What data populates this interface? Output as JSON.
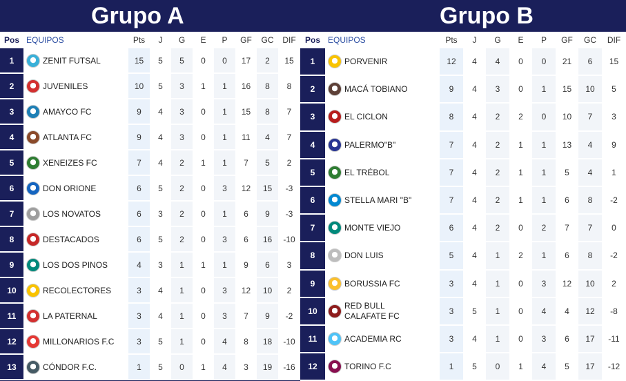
{
  "group_a": {
    "title": "Grupo A",
    "headers": {
      "pos": "Pos",
      "team": "EQUIPOS",
      "pts": "Pts",
      "j": "J",
      "g": "G",
      "e": "E",
      "p": "P",
      "gf": "GF",
      "gc": "GC",
      "dif": "DIF"
    },
    "rows": [
      {
        "pos": "1",
        "team": "ZENIT FUTSAL",
        "pts": "15",
        "j": "5",
        "g": "5",
        "e": "0",
        "p": "0",
        "gf": "17",
        "gc": "2",
        "dif": "15",
        "color": "#3ab0d8"
      },
      {
        "pos": "2",
        "team": "JUVENILES",
        "pts": "10",
        "j": "5",
        "g": "3",
        "e": "1",
        "p": "1",
        "gf": "16",
        "gc": "8",
        "dif": "8",
        "color": "#d32f2f"
      },
      {
        "pos": "3",
        "team": "AMAYCO FC",
        "pts": "9",
        "j": "4",
        "g": "3",
        "e": "0",
        "p": "1",
        "gf": "15",
        "gc": "8",
        "dif": "7",
        "color": "#1e7fb5"
      },
      {
        "pos": "4",
        "team": "ATLANTA FC",
        "pts": "9",
        "j": "4",
        "g": "3",
        "e": "0",
        "p": "1",
        "gf": "11",
        "gc": "4",
        "dif": "7",
        "color": "#8a4a2a"
      },
      {
        "pos": "5",
        "team": "XENEIZES FC",
        "pts": "7",
        "j": "4",
        "g": "2",
        "e": "1",
        "p": "1",
        "gf": "7",
        "gc": "5",
        "dif": "2",
        "color": "#2e7d32"
      },
      {
        "pos": "6",
        "team": "DON ORIONE",
        "pts": "6",
        "j": "5",
        "g": "2",
        "e": "0",
        "p": "3",
        "gf": "12",
        "gc": "15",
        "dif": "-3",
        "color": "#1565c0"
      },
      {
        "pos": "7",
        "team": "LOS NOVATOS",
        "pts": "6",
        "j": "3",
        "g": "2",
        "e": "0",
        "p": "1",
        "gf": "6",
        "gc": "9",
        "dif": "-3",
        "color": "#9e9e9e"
      },
      {
        "pos": "8",
        "team": "DESTACADOS",
        "pts": "6",
        "j": "5",
        "g": "2",
        "e": "0",
        "p": "3",
        "gf": "6",
        "gc": "16",
        "dif": "-10",
        "color": "#c62828"
      },
      {
        "pos": "9",
        "team": "LOS DOS PINOS",
        "pts": "4",
        "j": "3",
        "g": "1",
        "e": "1",
        "p": "1",
        "gf": "9",
        "gc": "6",
        "dif": "3",
        "color": "#00897b"
      },
      {
        "pos": "10",
        "team": "RECOLECTORES",
        "pts": "3",
        "j": "4",
        "g": "1",
        "e": "0",
        "p": "3",
        "gf": "12",
        "gc": "10",
        "dif": "2",
        "color": "#f9c300"
      },
      {
        "pos": "11",
        "team": "LA PATERNAL",
        "pts": "3",
        "j": "4",
        "g": "1",
        "e": "0",
        "p": "3",
        "gf": "7",
        "gc": "9",
        "dif": "-2",
        "color": "#d32f2f"
      },
      {
        "pos": "12",
        "team": "MILLONARIOS F.C",
        "pts": "3",
        "j": "5",
        "g": "1",
        "e": "0",
        "p": "4",
        "gf": "8",
        "gc": "18",
        "dif": "-10",
        "color": "#e53935"
      },
      {
        "pos": "13",
        "team": "CÓNDOR F.C.",
        "pts": "1",
        "j": "5",
        "g": "0",
        "e": "1",
        "p": "4",
        "gf": "3",
        "gc": "19",
        "dif": "-16",
        "color": "#455a64"
      }
    ]
  },
  "group_b": {
    "title": "Grupo B",
    "headers": {
      "pos": "Pos",
      "team": "EQUIPOS",
      "pts": "Pts",
      "j": "J",
      "g": "G",
      "e": "E",
      "p": "P",
      "gf": "GF",
      "gc": "GC",
      "dif": "DIF"
    },
    "rows": [
      {
        "pos": "1",
        "team": "PORVENIR",
        "pts": "12",
        "j": "4",
        "g": "4",
        "e": "0",
        "p": "0",
        "gf": "21",
        "gc": "6",
        "dif": "15",
        "color": "#f9c300"
      },
      {
        "pos": "2",
        "team": "MACÁ TOBIANO",
        "pts": "9",
        "j": "4",
        "g": "3",
        "e": "0",
        "p": "1",
        "gf": "15",
        "gc": "10",
        "dif": "5",
        "color": "#5d4037"
      },
      {
        "pos": "3",
        "team": "EL CICLON",
        "pts": "8",
        "j": "4",
        "g": "2",
        "e": "2",
        "p": "0",
        "gf": "10",
        "gc": "7",
        "dif": "3",
        "color": "#b71c1c"
      },
      {
        "pos": "4",
        "team": "PALERMO\"B\"",
        "pts": "7",
        "j": "4",
        "g": "2",
        "e": "1",
        "p": "1",
        "gf": "13",
        "gc": "4",
        "dif": "9",
        "color": "#283593"
      },
      {
        "pos": "5",
        "team": "EL TRÉBOL",
        "pts": "7",
        "j": "4",
        "g": "2",
        "e": "1",
        "p": "1",
        "gf": "5",
        "gc": "4",
        "dif": "1",
        "color": "#2e7d32"
      },
      {
        "pos": "6",
        "team": "STELLA MARI \"B\"",
        "pts": "7",
        "j": "4",
        "g": "2",
        "e": "1",
        "p": "1",
        "gf": "6",
        "gc": "8",
        "dif": "-2",
        "color": "#0288d1"
      },
      {
        "pos": "7",
        "team": "MONTE VIEJO",
        "pts": "6",
        "j": "4",
        "g": "2",
        "e": "0",
        "p": "2",
        "gf": "7",
        "gc": "7",
        "dif": "0",
        "color": "#00897b"
      },
      {
        "pos": "8",
        "team": "DON LUIS",
        "pts": "5",
        "j": "4",
        "g": "1",
        "e": "2",
        "p": "1",
        "gf": "6",
        "gc": "8",
        "dif": "-2",
        "color": "#bdbdbd"
      },
      {
        "pos": "9",
        "team": "BORUSSIA FC",
        "pts": "3",
        "j": "4",
        "g": "1",
        "e": "0",
        "p": "3",
        "gf": "12",
        "gc": "10",
        "dif": "2",
        "color": "#fbc02d"
      },
      {
        "pos": "10",
        "team": "RED BULL CALAFATE FC",
        "pts": "3",
        "j": "5",
        "g": "1",
        "e": "0",
        "p": "4",
        "gf": "4",
        "gc": "12",
        "dif": "-8",
        "color": "#8e1c1c"
      },
      {
        "pos": "11",
        "team": "ACADEMIA RC",
        "pts": "3",
        "j": "4",
        "g": "1",
        "e": "0",
        "p": "3",
        "gf": "6",
        "gc": "17",
        "dif": "-11",
        "color": "#4fc3f7"
      },
      {
        "pos": "12",
        "team": "TORINO F.C",
        "pts": "1",
        "j": "5",
        "g": "0",
        "e": "1",
        "p": "4",
        "gf": "5",
        "gc": "17",
        "dif": "-12",
        "color": "#880e4f"
      }
    ]
  }
}
